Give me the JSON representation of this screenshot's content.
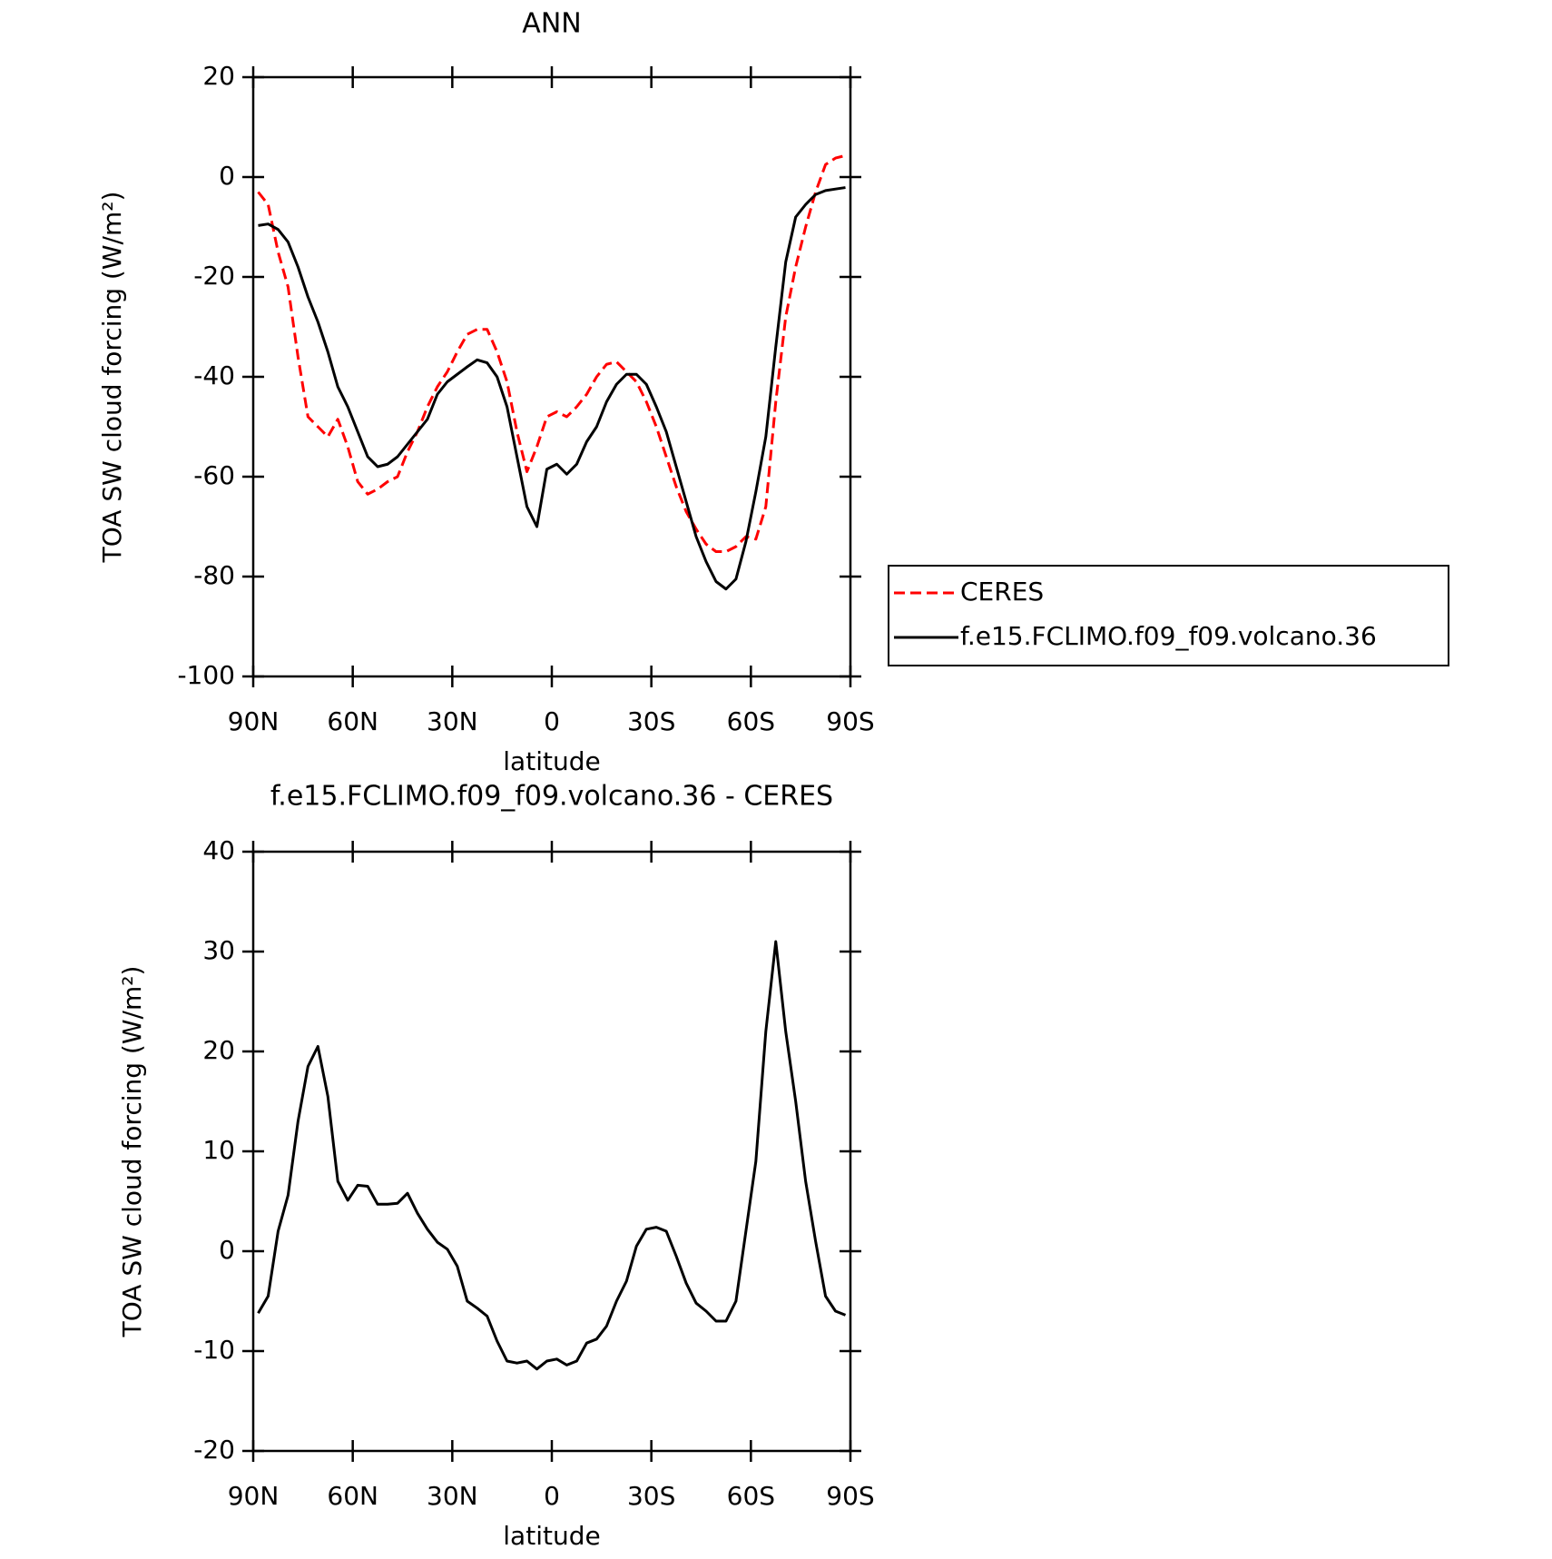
{
  "chart_data": [
    {
      "type": "line",
      "title": "ANN",
      "x_label": "latitude",
      "y_label": "TOA SW cloud forcing (W/m²)",
      "x": [
        88.5,
        85.5,
        82.5,
        79.5,
        76.5,
        73.5,
        70.5,
        67.5,
        64.5,
        61.5,
        58.5,
        55.5,
        52.5,
        49.5,
        46.5,
        43.5,
        40.5,
        37.5,
        34.5,
        31.5,
        28.5,
        25.5,
        22.5,
        19.5,
        16.5,
        13.5,
        10.5,
        7.5,
        4.5,
        1.5,
        -1.5,
        -4.5,
        -7.5,
        -10.5,
        -13.5,
        -16.5,
        -19.5,
        -22.5,
        -25.5,
        -28.5,
        -31.5,
        -34.5,
        -37.5,
        -40.5,
        -43.5,
        -46.5,
        -49.5,
        -52.5,
        -55.5,
        -58.5,
        -61.5,
        -64.5,
        -67.5,
        -70.5,
        -73.5,
        -76.5,
        -79.5,
        -82.5,
        -85.5,
        -88.5
      ],
      "series": [
        {
          "name": "CERES",
          "color": "#ff0000",
          "style": "dashed",
          "values": [
            -3,
            -5.5,
            -15,
            -22,
            -36,
            -48,
            -50,
            -52,
            -48.5,
            -54,
            -61,
            -63.5,
            -62.5,
            -61,
            -60,
            -55,
            -51,
            -46,
            -42,
            -39,
            -35,
            -31.5,
            -30.5,
            -30.5,
            -35,
            -41,
            -51,
            -59,
            -54,
            -48,
            -47,
            -48,
            -46,
            -43.5,
            -40,
            -37.5,
            -37,
            -39,
            -41,
            -45,
            -50,
            -56,
            -62,
            -67,
            -70.5,
            -73.5,
            -75,
            -75,
            -74,
            -72,
            -72.5,
            -66,
            -45,
            -28,
            -18,
            -10,
            -3,
            2.5,
            3.8,
            4.3
          ]
        },
        {
          "name": "f.e15.FCLIMO.f09_f09.volcano.36",
          "color": "#000000",
          "style": "solid",
          "values": [
            -9.7,
            -9.4,
            -10.5,
            -13,
            -18,
            -24,
            -29,
            -35,
            -42,
            -46,
            -51,
            -56,
            -58,
            -57.5,
            -56,
            -53.5,
            -51,
            -48.5,
            -43.5,
            -41,
            -39.5,
            -38,
            -36.6,
            -37.2,
            -40,
            -46,
            -56,
            -66,
            -70,
            -58.5,
            -57.5,
            -59.5,
            -57.5,
            -53,
            -50,
            -45,
            -41.5,
            -39.5,
            -39.5,
            -41.5,
            -46,
            -51,
            -58,
            -65,
            -72,
            -77,
            -81,
            -82.5,
            -80.5,
            -73,
            -63,
            -52,
            -34,
            -17,
            -8,
            -5.5,
            -3.5,
            -2.7,
            -2.4,
            -2.1
          ]
        }
      ],
      "xlim": [
        90,
        -90
      ],
      "xticks": [
        {
          "value": 90,
          "label": "90N"
        },
        {
          "value": 60,
          "label": "60N"
        },
        {
          "value": 30,
          "label": "30N"
        },
        0,
        {
          "value": -30,
          "label": "30S"
        },
        {
          "value": -60,
          "label": "60S"
        },
        {
          "value": -90,
          "label": "90S"
        }
      ],
      "ylim": [
        -100,
        20
      ],
      "yticks": [
        -100,
        -80,
        -60,
        -40,
        -20,
        0,
        20
      ],
      "legend": "right"
    },
    {
      "type": "line",
      "title": "f.e15.FCLIMO.f09_f09.volcano.36 - CERES",
      "x_label": "latitude",
      "y_label": "TOA SW cloud forcing (W/m²)",
      "x": [
        88.5,
        85.5,
        82.5,
        79.5,
        76.5,
        73.5,
        70.5,
        67.5,
        64.5,
        61.5,
        58.5,
        55.5,
        52.5,
        49.5,
        46.5,
        43.5,
        40.5,
        37.5,
        34.5,
        31.5,
        28.5,
        25.5,
        22.5,
        19.5,
        16.5,
        13.5,
        10.5,
        7.5,
        4.5,
        1.5,
        -1.5,
        -4.5,
        -7.5,
        -10.5,
        -13.5,
        -16.5,
        -19.5,
        -22.5,
        -25.5,
        -28.5,
        -31.5,
        -34.5,
        -37.5,
        -40.5,
        -43.5,
        -46.5,
        -49.5,
        -52.5,
        -55.5,
        -58.5,
        -61.5,
        -64.5,
        -67.5,
        -70.5,
        -73.5,
        -76.5,
        -79.5,
        -82.5,
        -85.5,
        -88.5
      ],
      "values": [
        -6.2,
        -4.5,
        2,
        5.6,
        13,
        18.5,
        20.5,
        15.5,
        7,
        5.1,
        6.6,
        6.5,
        4.7,
        4.7,
        4.8,
        5.8,
        3.8,
        2.2,
        0.9,
        0.2,
        -1.5,
        -5,
        -5.7,
        -6.5,
        -9,
        -11,
        -11.2,
        -11,
        -11.8,
        -11,
        -10.8,
        -11.4,
        -11,
        -9.2,
        -8.8,
        -7.5,
        -5,
        -3,
        0.5,
        2.2,
        2.4,
        2,
        -0.5,
        -3.2,
        -5.2,
        -6,
        -7,
        -7,
        -5,
        2,
        9,
        22,
        31,
        22,
        15,
        7,
        1,
        -4.5,
        -6,
        -6.4
      ],
      "color": "#000000",
      "xlim": [
        90,
        -90
      ],
      "xticks": [
        {
          "value": 90,
          "label": "90N"
        },
        {
          "value": 60,
          "label": "60N"
        },
        {
          "value": 30,
          "label": "30N"
        },
        0,
        {
          "value": -30,
          "label": "30S"
        },
        {
          "value": -60,
          "label": "60S"
        },
        {
          "value": -90,
          "label": "90S"
        }
      ],
      "ylim": [
        -20,
        40
      ],
      "yticks": [
        -20,
        -10,
        0,
        10,
        20,
        30,
        40
      ]
    }
  ]
}
